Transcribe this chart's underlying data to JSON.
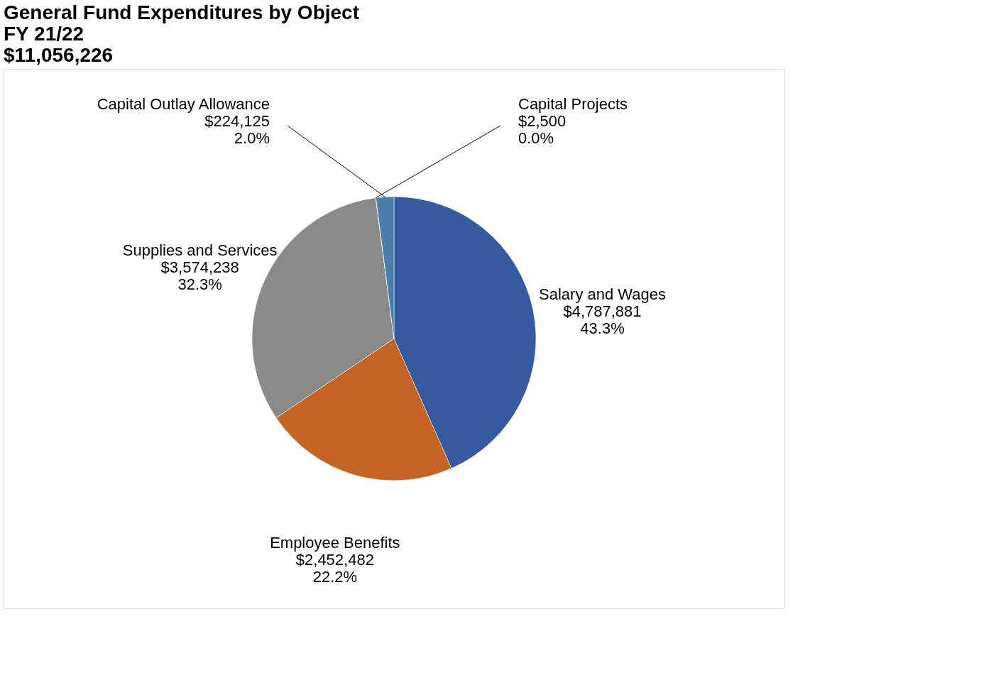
{
  "chart_data": {
    "type": "pie",
    "title": [
      "General Fund Expenditures by Object",
      "FY 21/22",
      "$11,056,226"
    ],
    "categories": [
      "Salary and Wages",
      "Employee Benefits",
      "Supplies and Services",
      "Capital Projects",
      "Capital Outlay Allowance"
    ],
    "values": [
      4787881,
      2452482,
      3574238,
      2500,
      224125
    ],
    "value_labels": [
      "$4,787,881\n43.3%",
      "$2,452,482\n22.2%",
      "$3,574,238\n32.3%",
      "$2,500\n0.0%",
      "$224,125\n2.0%"
    ],
    "colors": [
      "#375a9e",
      "#c46526",
      "#8a8a8a",
      "#d9a300",
      "#4a7eab"
    ],
    "legend": false
  }
}
